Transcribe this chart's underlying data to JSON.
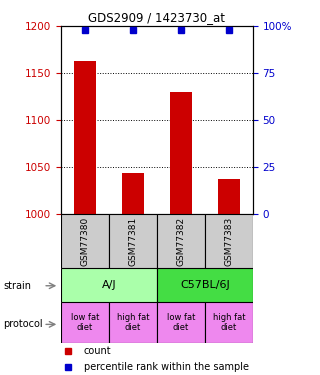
{
  "title": "GDS2909 / 1423730_at",
  "samples": [
    "GSM77380",
    "GSM77381",
    "GSM77382",
    "GSM77383"
  ],
  "counts": [
    1163,
    1043,
    1130,
    1037
  ],
  "percentile_ranks": [
    98,
    98,
    98,
    98
  ],
  "ylim_left": [
    1000,
    1200
  ],
  "ylim_right": [
    0,
    100
  ],
  "yticks_left": [
    1000,
    1050,
    1100,
    1150,
    1200
  ],
  "yticks_right": [
    0,
    25,
    50,
    75,
    100
  ],
  "ytick_labels_right": [
    "0",
    "25",
    "50",
    "75",
    "100%"
  ],
  "bar_color": "#cc0000",
  "dot_color": "#0000cc",
  "strain_labels": [
    "A/J",
    "C57BL/6J"
  ],
  "strain_colors": [
    "#aaffaa",
    "#44dd44"
  ],
  "protocol_labels": [
    "low fat\ndiet",
    "high fat\ndiet",
    "low fat\ndiet",
    "high fat\ndiet"
  ],
  "protocol_color": "#ee88ee",
  "sample_box_color": "#cccccc",
  "left_tick_color": "#cc0000",
  "right_tick_color": "#0000cc",
  "legend_count_color": "#cc0000",
  "legend_dot_color": "#0000cc",
  "legend_count_label": "count",
  "legend_dot_label": "percentile rank within the sample"
}
